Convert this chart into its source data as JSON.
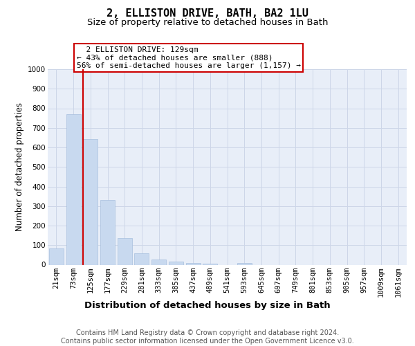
{
  "title": "2, ELLISTON DRIVE, BATH, BA2 1LU",
  "subtitle": "Size of property relative to detached houses in Bath",
  "xlabel": "Distribution of detached houses by size in Bath",
  "ylabel": "Number of detached properties",
  "categories": [
    "21sqm",
    "73sqm",
    "125sqm",
    "177sqm",
    "229sqm",
    "281sqm",
    "333sqm",
    "385sqm",
    "437sqm",
    "489sqm",
    "541sqm",
    "593sqm",
    "645sqm",
    "697sqm",
    "749sqm",
    "801sqm",
    "853sqm",
    "905sqm",
    "957sqm",
    "1009sqm",
    "1061sqm"
  ],
  "values": [
    82,
    770,
    643,
    332,
    135,
    58,
    25,
    15,
    8,
    5,
    0,
    10,
    0,
    0,
    0,
    0,
    0,
    0,
    0,
    0,
    0
  ],
  "bar_color": "#c8d9ef",
  "bar_edge_color": "#a8c0de",
  "annotation_text": "  2 ELLISTON DRIVE: 129sqm\n← 43% of detached houses are smaller (888)\n56% of semi-detached houses are larger (1,157) →",
  "annotation_box_color": "#ffffff",
  "annotation_border_color": "#cc0000",
  "vline_color": "#cc0000",
  "red_line_index": 2,
  "ylim": [
    0,
    1000
  ],
  "yticks": [
    0,
    100,
    200,
    300,
    400,
    500,
    600,
    700,
    800,
    900,
    1000
  ],
  "grid_color": "#cdd6e8",
  "background_color": "#e8eef8",
  "footer_text": "Contains HM Land Registry data © Crown copyright and database right 2024.\nContains public sector information licensed under the Open Government Licence v3.0.",
  "title_fontsize": 11,
  "subtitle_fontsize": 9.5,
  "xlabel_fontsize": 9.5,
  "ylabel_fontsize": 8.5,
  "tick_fontsize": 7.5,
  "footer_fontsize": 7,
  "annotation_fontsize": 8
}
